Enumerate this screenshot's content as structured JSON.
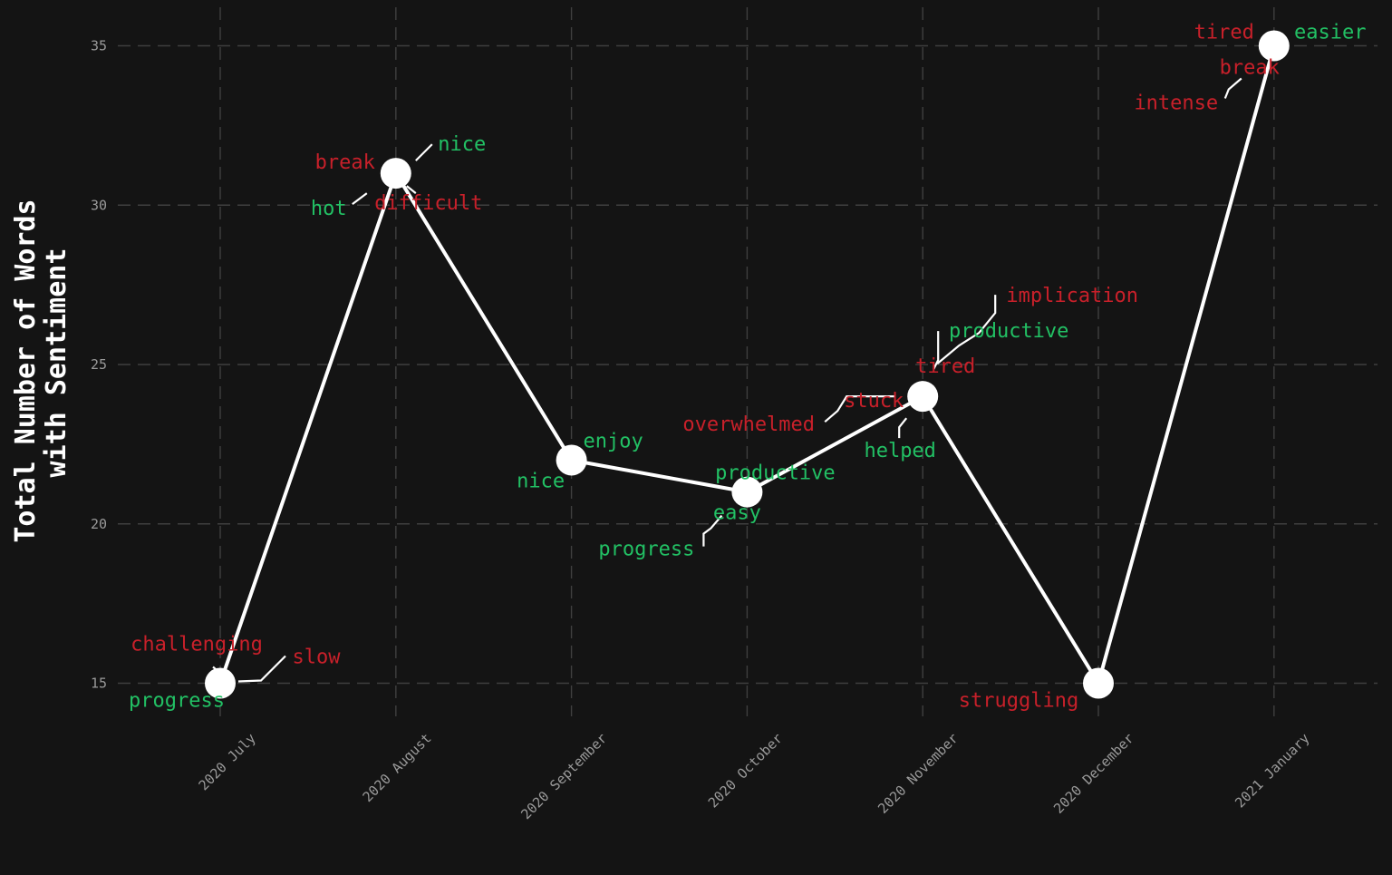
{
  "chart_data": {
    "type": "line",
    "ylabel_lines": [
      "Total Number of Words",
      "with Sentiment"
    ],
    "xlabel": "",
    "categories": [
      "2020 July",
      "2020 August",
      "2020 September",
      "2020 October",
      "2020 November",
      "2020 December",
      "2021 January"
    ],
    "values": [
      15,
      31,
      22,
      21,
      24,
      15,
      35
    ],
    "ylim": [
      14,
      36
    ],
    "yticks": [
      15,
      20,
      25,
      30,
      35
    ],
    "grid": true,
    "legend": "none",
    "colors": {
      "background": "#141414",
      "line": "#ffffff",
      "positive": "#22c064",
      "negative": "#c8202a",
      "grid": "#3f3f3f",
      "tick": "#9a9a9a"
    },
    "annotations": [
      {
        "category": "2020 July",
        "words": [
          {
            "text": "challenging",
            "sentiment": "negative"
          },
          {
            "text": "slow",
            "sentiment": "negative"
          },
          {
            "text": "progress",
            "sentiment": "positive"
          }
        ]
      },
      {
        "category": "2020 August",
        "words": [
          {
            "text": "nice",
            "sentiment": "positive"
          },
          {
            "text": "break",
            "sentiment": "negative"
          },
          {
            "text": "hot",
            "sentiment": "positive"
          },
          {
            "text": "difficult",
            "sentiment": "negative"
          }
        ]
      },
      {
        "category": "2020 September",
        "words": [
          {
            "text": "enjoy",
            "sentiment": "positive"
          },
          {
            "text": "nice",
            "sentiment": "positive"
          }
        ]
      },
      {
        "category": "2020 October",
        "words": [
          {
            "text": "productive",
            "sentiment": "positive"
          },
          {
            "text": "easy",
            "sentiment": "positive"
          },
          {
            "text": "progress",
            "sentiment": "positive"
          }
        ]
      },
      {
        "category": "2020 November",
        "words": [
          {
            "text": "implication",
            "sentiment": "negative"
          },
          {
            "text": "productive",
            "sentiment": "positive"
          },
          {
            "text": "tired",
            "sentiment": "negative"
          },
          {
            "text": "stuck",
            "sentiment": "negative"
          },
          {
            "text": "overwhelmed",
            "sentiment": "negative"
          },
          {
            "text": "helped",
            "sentiment": "positive"
          }
        ]
      },
      {
        "category": "2020 December",
        "words": [
          {
            "text": "struggling",
            "sentiment": "negative"
          }
        ]
      },
      {
        "category": "2021 January",
        "words": [
          {
            "text": "tired",
            "sentiment": "negative"
          },
          {
            "text": "easier",
            "sentiment": "positive"
          },
          {
            "text": "break",
            "sentiment": "negative"
          },
          {
            "text": "intense",
            "sentiment": "negative"
          }
        ]
      }
    ]
  }
}
